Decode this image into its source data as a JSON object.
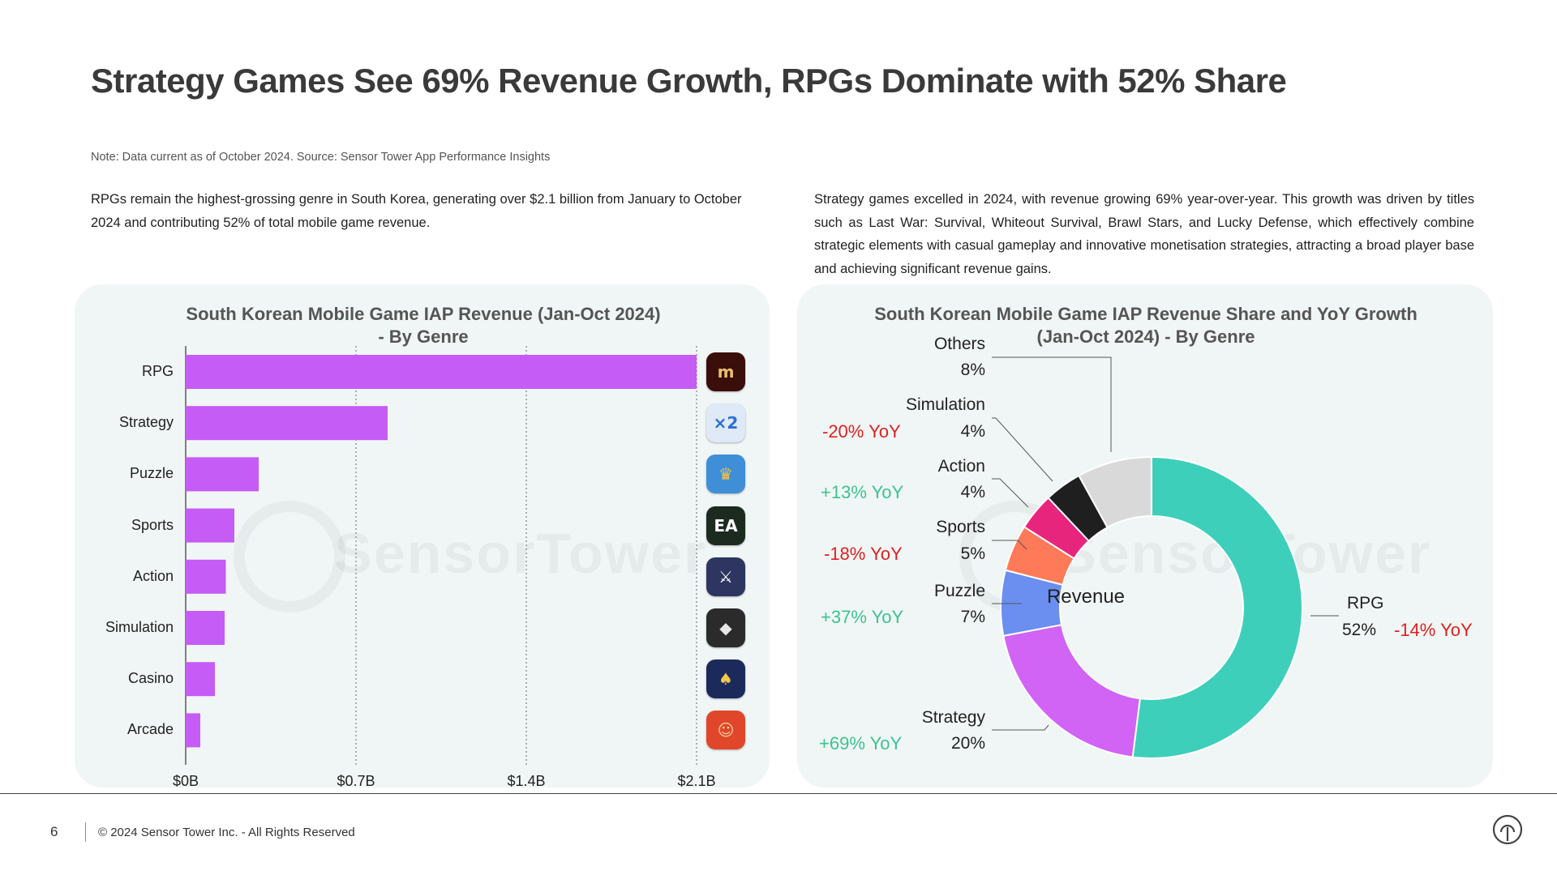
{
  "page": {
    "title": "Strategy Games See 69% Revenue Growth, RPGs Dominate with 52% Share",
    "note": "Note: Data current as of October 2024. Source: Sensor Tower App Performance Insights",
    "left_paragraph": "RPGs remain the highest-grossing genre in South Korea, generating over $2.1 billion from January to October 2024 and contributing 52% of total mobile game revenue.",
    "right_paragraph": "Strategy games excelled in 2024, with revenue growing 69% year-over-year. This growth was driven by titles such as Last War: Survival, Whiteout Survival, Brawl Stars, and Lucky Defense, which effectively combine strategic elements with casual gameplay and innovative monetisation strategies, attracting a broad player base and achieving significant revenue gains.",
    "watermark": "SensorTower"
  },
  "footer": {
    "page_number": "6",
    "copyright": "© 2024 Sensor Tower Inc. - All Rights Reserved",
    "logo_icon": "sensor-tower-logo-icon"
  },
  "chart_data": [
    {
      "type": "bar",
      "orientation": "horizontal",
      "title_line1": "South Korean Mobile Game IAP Revenue (Jan-Oct 2024)",
      "title_line2": "- By Genre",
      "categories": [
        "RPG",
        "Strategy",
        "Puzzle",
        "Sports",
        "Action",
        "Simulation",
        "Casino",
        "Arcade"
      ],
      "values": [
        2.1,
        0.83,
        0.3,
        0.2,
        0.165,
        0.16,
        0.12,
        0.06
      ],
      "unit": "USD billions",
      "xlim": [
        0,
        2.1
      ],
      "ticks": [
        0,
        0.7,
        1.4,
        2.1
      ],
      "tick_labels": [
        "$0B",
        "$0.7B",
        "$1.4B",
        "$2.1B"
      ],
      "grid": "vertical dotted",
      "bar_color": "#c55cf5",
      "game_icons": [
        {
          "icon": "lineage-m-icon",
          "bg": "#3a0e0a",
          "fg": "#e8c070",
          "glyph": "m"
        },
        {
          "icon": "lucky-defense-icon",
          "bg": "#dfe9f7",
          "fg": "#2a6fd6",
          "glyph": "×2"
        },
        {
          "icon": "royal-match-icon",
          "bg": "#3f8fd8",
          "fg": "#f6c343",
          "glyph": "♛"
        },
        {
          "icon": "ea-fc-mobile-icon",
          "bg": "#1c2a1f",
          "fg": "#ffffff",
          "glyph": "EA"
        },
        {
          "icon": "netmarble-action-icon",
          "bg": "#2d3560",
          "fg": "#ffffff",
          "glyph": "⚔"
        },
        {
          "icon": "roblox-icon",
          "bg": "#2b2b2b",
          "fg": "#e8e8e8",
          "glyph": "◆"
        },
        {
          "icon": "poker-hangame-icon",
          "bg": "#1b2a5a",
          "fg": "#f3c84a",
          "glyph": "♠"
        },
        {
          "icon": "cookie-run-icon",
          "bg": "#e0472a",
          "fg": "#f6c99a",
          "glyph": "☺"
        }
      ]
    },
    {
      "type": "pie",
      "variant": "donut",
      "title_line1": "South Korean Mobile Game IAP Revenue Share and YoY Growth",
      "title_line2": "(Jan-Oct 2024) - By Genre",
      "center_label": "Revenue",
      "slices": [
        {
          "name": "RPG",
          "value": 52,
          "label": "52%",
          "yoy": "-14% YoY",
          "yoy_sign": "neg",
          "color": "#3ecfbb"
        },
        {
          "name": "Strategy",
          "value": 20,
          "label": "20%",
          "yoy": "+69% YoY",
          "yoy_sign": "pos",
          "color": "#d163f5"
        },
        {
          "name": "Puzzle",
          "value": 7,
          "label": "7%",
          "yoy": "+37% YoY",
          "yoy_sign": "pos",
          "color": "#6b8ff0"
        },
        {
          "name": "Sports",
          "value": 5,
          "label": "5%",
          "yoy": "-18% YoY",
          "yoy_sign": "neg",
          "color": "#ff7a59"
        },
        {
          "name": "Action",
          "value": 4,
          "label": "4%",
          "yoy": "+13% YoY",
          "yoy_sign": "pos",
          "color": "#e8257d"
        },
        {
          "name": "Simulation",
          "value": 4,
          "label": "4%",
          "yoy": "-20% YoY",
          "yoy_sign": "neg",
          "color": "#1f1f1f"
        },
        {
          "name": "Others",
          "value": 8,
          "label": "8%",
          "yoy": "",
          "yoy_sign": "",
          "color": "#d9d9d9"
        }
      ]
    }
  ]
}
